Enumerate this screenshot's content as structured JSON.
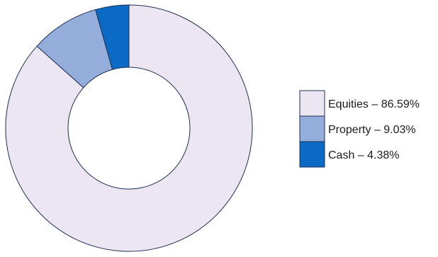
{
  "chart_data": {
    "type": "pie",
    "variant": "donut",
    "title": "",
    "legend_position": "right",
    "start_angle_deg": 0,
    "direction": "clockwise",
    "series": [
      {
        "slices": [
          {
            "label": "Equities",
            "value": 86.59,
            "legend_text": "Equities – 86.59%",
            "color": "#ece6f2"
          },
          {
            "label": "Property",
            "value": 9.03,
            "legend_text": "Property – 9.03%",
            "color": "#95addb"
          },
          {
            "label": "Cash",
            "value": 4.38,
            "legend_text": "Cash – 4.38%",
            "color": "#0a6ac4"
          }
        ]
      }
    ],
    "stroke_color": "#1f2f50"
  }
}
